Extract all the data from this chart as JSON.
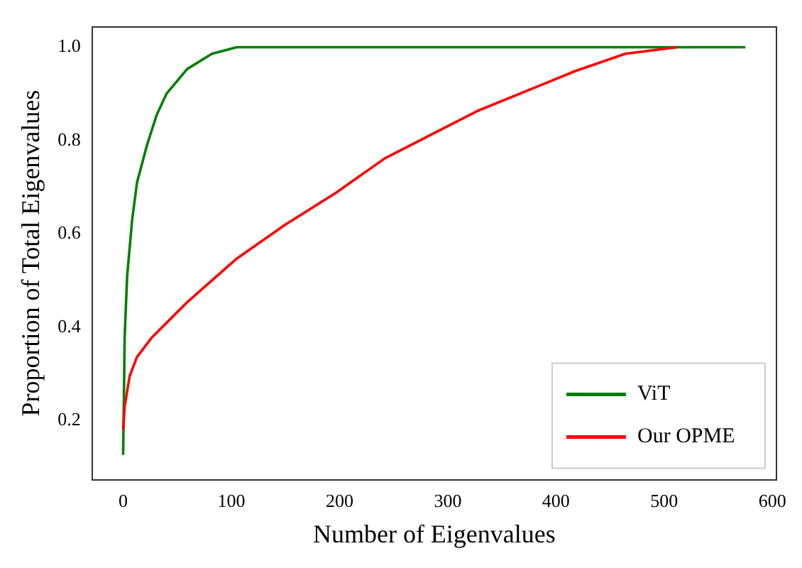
{
  "chart_data": {
    "type": "line",
    "xlabel": "Number of Eigenvalues",
    "ylabel": "Proportion of Total Eigenvalues",
    "xlim": [
      -28.75,
      603.75
    ],
    "xticks": [
      0,
      100,
      200,
      300,
      400,
      500,
      600
    ],
    "ylim": [
      0.073,
      1.044
    ],
    "yticks": [
      0.2,
      0.4,
      0.6,
      0.8,
      {
        "value": 1,
        "label": "1.0"
      }
    ],
    "grid": false,
    "legend": "bottom right",
    "marker": "none",
    "line_style": "solid",
    "series": [
      {
        "name": "ViT",
        "color": "#008000",
        "x": [
          0,
          1.4,
          3.7,
          8.3,
          12.8,
          22,
          31,
          40,
          59,
          82,
          105,
          200,
          300,
          400,
          500,
          575
        ],
        "values": [
          0.126,
          0.38,
          0.51,
          0.63,
          0.71,
          0.79,
          0.855,
          0.9,
          0.953,
          0.986,
          1.0,
          1.0,
          1.0,
          1.0,
          1.0,
          1.0
        ]
      },
      {
        "name": "Our OPME",
        "color": "#ff0000",
        "x": [
          0,
          1.4,
          6,
          12.8,
          26.6,
          59,
          105,
          150,
          196,
          242,
          327,
          418,
          464,
          512
        ],
        "values": [
          0.18,
          0.23,
          0.295,
          0.336,
          0.378,
          0.453,
          0.547,
          0.62,
          0.687,
          0.762,
          0.863,
          0.949,
          0.986,
          1.0
        ]
      }
    ]
  }
}
